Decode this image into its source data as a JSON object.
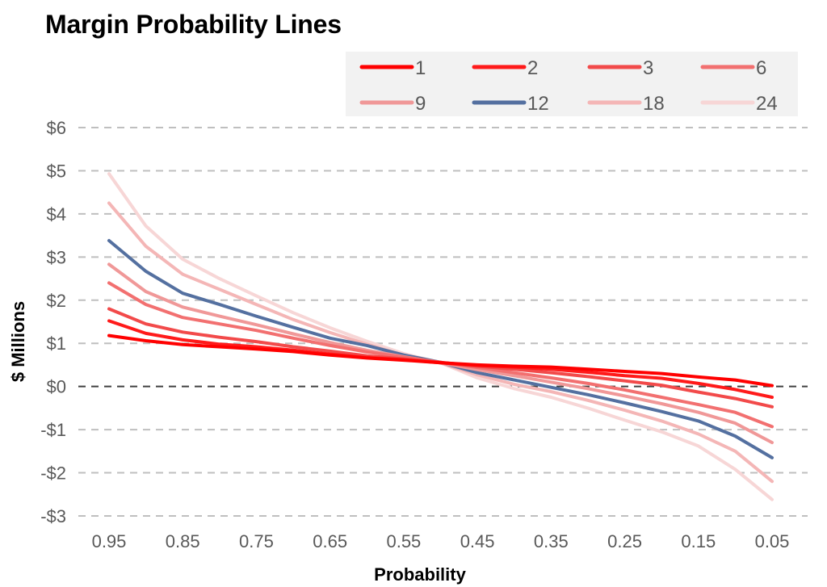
{
  "chart_data": {
    "type": "line",
    "title": "Margin Probability Lines",
    "xlabel": "Probability",
    "ylabel": "$ Millions",
    "x": [
      0.95,
      0.9,
      0.85,
      0.8,
      0.75,
      0.7,
      0.65,
      0.6,
      0.55,
      0.5,
      0.45,
      0.4,
      0.35,
      0.3,
      0.25,
      0.2,
      0.15,
      0.1,
      0.05
    ],
    "xtick_labels": [
      "0.95",
      "0.85",
      "0.75",
      "0.65",
      "0.55",
      "0.45",
      "0.35",
      "0.25",
      "0.15",
      "0.05"
    ],
    "ylim": [
      -3,
      6
    ],
    "yticks": [
      6,
      5,
      4,
      3,
      2,
      1,
      0,
      -1,
      -2,
      -3
    ],
    "ytick_labels": [
      "$6",
      "$5",
      "$4",
      "$3",
      "$2",
      "$1",
      "$0",
      "-$1",
      "-$2",
      "-$3"
    ],
    "grid": "dashed horizontal",
    "legend_position": "top-right",
    "series": [
      {
        "name": "1",
        "color": "#ff0000",
        "values": [
          1.18,
          1.06,
          0.97,
          0.92,
          0.87,
          0.81,
          0.73,
          0.66,
          0.61,
          0.55,
          0.5,
          0.47,
          0.45,
          0.4,
          0.35,
          0.3,
          0.22,
          0.15,
          0.02
        ]
      },
      {
        "name": "2",
        "color": "#ff1a1a",
        "values": [
          1.52,
          1.23,
          1.08,
          0.98,
          0.92,
          0.84,
          0.75,
          0.67,
          0.62,
          0.55,
          0.49,
          0.45,
          0.4,
          0.33,
          0.25,
          0.19,
          0.07,
          -0.07,
          -0.25
        ]
      },
      {
        "name": "3",
        "color": "#f24a4a",
        "values": [
          1.8,
          1.45,
          1.26,
          1.14,
          1.04,
          0.92,
          0.82,
          0.71,
          0.64,
          0.56,
          0.47,
          0.4,
          0.32,
          0.23,
          0.13,
          0.03,
          -0.13,
          -0.28,
          -0.47
        ]
      },
      {
        "name": "6",
        "color": "#f27070",
        "values": [
          2.4,
          1.9,
          1.6,
          1.45,
          1.3,
          1.12,
          0.95,
          0.8,
          0.68,
          0.56,
          0.44,
          0.32,
          0.2,
          0.07,
          -0.08,
          -0.25,
          -0.42,
          -0.6,
          -0.93
        ]
      },
      {
        "name": "9",
        "color": "#f09898",
        "values": [
          2.83,
          2.2,
          1.84,
          1.63,
          1.43,
          1.22,
          1.02,
          0.84,
          0.69,
          0.55,
          0.39,
          0.25,
          0.1,
          -0.05,
          -0.22,
          -0.4,
          -0.6,
          -0.85,
          -1.3
        ]
      },
      {
        "name": "12",
        "color": "#5470a0",
        "values": [
          3.38,
          2.67,
          2.16,
          1.9,
          1.63,
          1.37,
          1.12,
          0.95,
          0.73,
          0.56,
          0.32,
          0.15,
          -0.02,
          -0.19,
          -0.38,
          -0.58,
          -0.8,
          -1.15,
          -1.65
        ]
      },
      {
        "name": "18",
        "color": "#f4b6b6",
        "values": [
          4.25,
          3.25,
          2.6,
          2.25,
          1.9,
          1.55,
          1.25,
          0.98,
          0.72,
          0.55,
          0.27,
          0.05,
          -0.12,
          -0.32,
          -0.55,
          -0.8,
          -1.1,
          -1.5,
          -2.2
        ]
      },
      {
        "name": "24",
        "color": "#f7d6d6",
        "values": [
          4.93,
          3.72,
          2.95,
          2.5,
          2.1,
          1.71,
          1.36,
          1.05,
          0.76,
          0.55,
          0.2,
          -0.05,
          -0.25,
          -0.5,
          -0.78,
          -1.05,
          -1.38,
          -1.92,
          -2.62
        ]
      }
    ]
  }
}
